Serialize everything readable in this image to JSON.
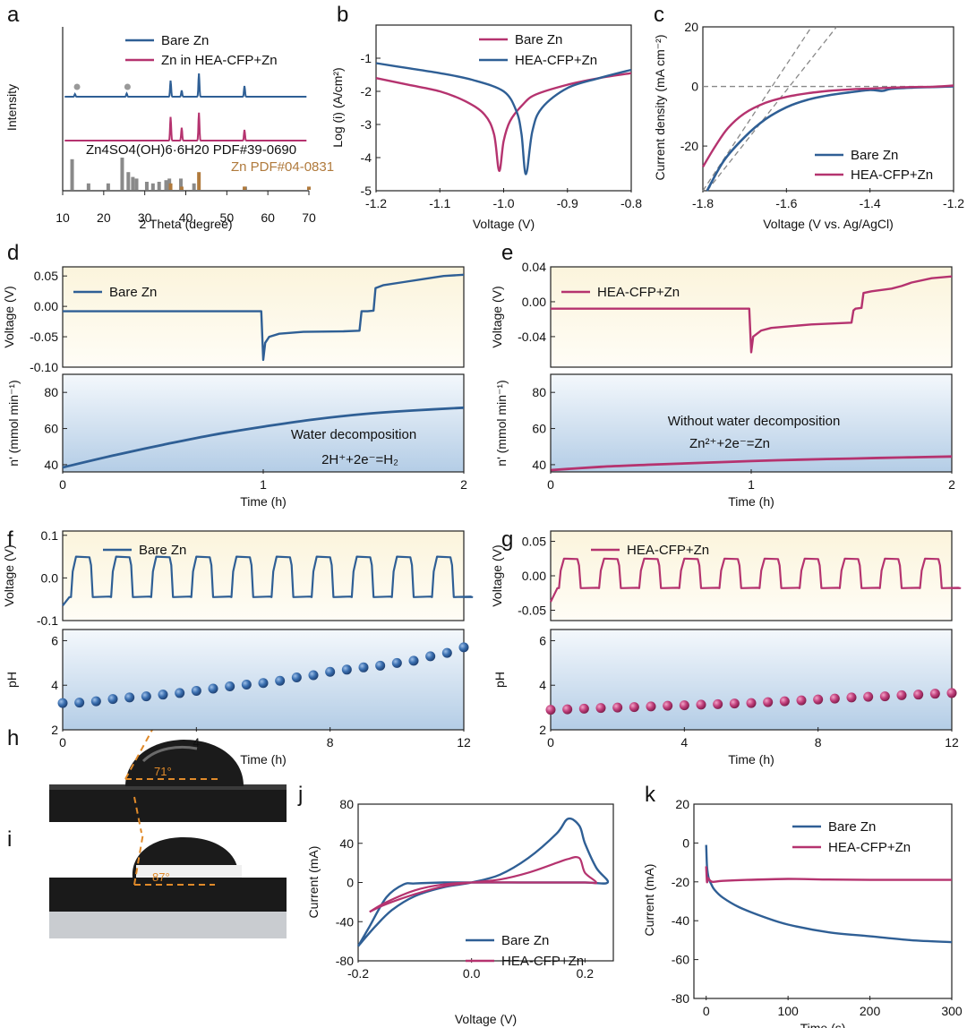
{
  "colors": {
    "blue": "#2f5f95",
    "pink": "#b5336f",
    "gray": "#8a8a8a",
    "brown": "#b07a3c",
    "grid": "#bdbdbd"
  },
  "panel_letters": [
    "a",
    "b",
    "c",
    "d",
    "e",
    "f",
    "g",
    "h",
    "i",
    "j",
    "k"
  ],
  "chart_data": [
    {
      "id": "a",
      "type": "line",
      "xlabel": "2 Theta (degree)",
      "ylabel": "Intensity",
      "xlim": [
        10,
        70
      ],
      "xticks": [
        "10",
        "20",
        "30",
        "40",
        "50",
        "60",
        "70"
      ],
      "legend": [
        "Bare Zn",
        "Zn in HEA-CFP+Zn"
      ],
      "annotation_1": "Zn4SO4(OH)6·6H20  PDF#39-0690",
      "annotation_2": "Zn PDF#04-0831",
      "series": [
        {
          "name": "Bare Zn",
          "peaks_2theta": [
            13.0,
            25.6,
            36.3,
            39.0,
            43.2,
            54.3
          ],
          "peak_heights": [
            0.15,
            0.18,
            0.9,
            0.35,
            1.3,
            0.6
          ]
        },
        {
          "name": "Zn in HEA-CFP+Zn",
          "peaks_2theta": [
            36.3,
            39.0,
            43.2,
            54.3
          ],
          "peak_heights": [
            1.1,
            0.6,
            1.3,
            0.5
          ]
        }
      ],
      "reference_zn4so4": {
        "x": [
          12.3,
          16.3,
          21.1,
          24.5,
          26.0,
          27.1,
          28.0,
          30.5,
          32.0,
          33.5,
          35.2,
          36.0,
          38.8,
          42.0,
          54.5
        ],
        "h": [
          0.95,
          0.2,
          0.2,
          1.0,
          0.55,
          0.4,
          0.35,
          0.25,
          0.2,
          0.25,
          0.3,
          0.35,
          0.35,
          0.2,
          0.1
        ]
      },
      "reference_zn": {
        "x": [
          36.3,
          39.0,
          43.2,
          54.3,
          70.0
        ],
        "h": [
          0.2,
          0.1,
          0.55,
          0.1,
          0.1
        ]
      }
    },
    {
      "id": "b",
      "type": "line",
      "xlabel": "Voltage (V)",
      "ylabel": "Log (i) (A/cm²)",
      "xlim": [
        -1.2,
        -0.8
      ],
      "ylim": [
        -5,
        0
      ],
      "xticks": [
        "-1.2",
        "-1.1",
        "-1.0",
        "-0.9",
        "-0.8"
      ],
      "yticks": [
        "-5",
        "-4",
        "-3",
        "-2",
        "-1"
      ],
      "legend": [
        "Bare Zn",
        "HEA-CFP+Zn"
      ],
      "series": [
        {
          "name": "Bare Zn",
          "x": [
            -1.2,
            -1.15,
            -1.1,
            -1.06,
            -1.03,
            -1.015,
            -1.007,
            -1.0,
            -0.99,
            -0.97,
            -0.95,
            -0.9,
            -0.85,
            -0.8
          ],
          "y": [
            -1.6,
            -1.8,
            -2.0,
            -2.3,
            -2.7,
            -3.3,
            -4.4,
            -3.5,
            -2.9,
            -2.4,
            -2.1,
            -1.8,
            -1.6,
            -1.45
          ]
        },
        {
          "name": "HEA-CFP+Zn",
          "x": [
            -1.2,
            -1.15,
            -1.1,
            -1.05,
            -1.0,
            -0.98,
            -0.972,
            -0.965,
            -0.955,
            -0.94,
            -0.9,
            -0.85,
            -0.8
          ],
          "y": [
            -1.15,
            -1.3,
            -1.45,
            -1.65,
            -2.0,
            -2.6,
            -3.3,
            -4.5,
            -3.2,
            -2.5,
            -1.9,
            -1.6,
            -1.35
          ]
        }
      ]
    },
    {
      "id": "c",
      "type": "line",
      "xlabel": "Voltage (V vs. Ag/AgCl)",
      "ylabel": "Current density (mA cm⁻²)",
      "xlim": [
        -1.8,
        -1.2
      ],
      "ylim": [
        -35,
        20
      ],
      "xticks": [
        "-1.8",
        "-1.6",
        "-1.4",
        "-1.2"
      ],
      "yticks": [
        "-20",
        "0",
        "20"
      ],
      "legend": [
        "Bare Zn",
        "HEA-CFP+Zn"
      ],
      "series": [
        {
          "name": "Bare Zn",
          "x": [
            -1.79,
            -1.75,
            -1.7,
            -1.65,
            -1.6,
            -1.55,
            -1.5,
            -1.45,
            -1.4,
            -1.37,
            -1.35,
            -1.3,
            -1.25,
            -1.2
          ],
          "y": [
            -35,
            -25,
            -17,
            -11,
            -7,
            -4.5,
            -3,
            -2,
            -1.2,
            -1.5,
            -0.8,
            -0.4,
            -0.2,
            0
          ]
        },
        {
          "name": "HEA-CFP+Zn",
          "x": [
            -1.8,
            -1.77,
            -1.74,
            -1.7,
            -1.65,
            -1.6,
            -1.55,
            -1.5,
            -1.45,
            -1.4,
            -1.35,
            -1.3,
            -1.25,
            -1.2
          ],
          "y": [
            -27,
            -20,
            -14,
            -9,
            -5.5,
            -3.5,
            -2.3,
            -1.5,
            -1,
            -0.7,
            -0.4,
            -0.2,
            -0.1,
            0.3
          ]
        }
      ]
    },
    {
      "id": "d",
      "type": "line",
      "xlabel": "Time (h)",
      "xlim": [
        0,
        2
      ],
      "xticks": [
        "0",
        "1",
        "2"
      ],
      "top": {
        "ylabel": "Voltage (V)",
        "ylim": [
          -0.1,
          0.065
        ],
        "yticks": [
          "-0.10",
          "-0.05",
          "0.00",
          "0.05"
        ],
        "legend": "Bare Zn",
        "x": [
          0,
          0.99,
          1.0,
          1.01,
          1.03,
          1.08,
          1.2,
          1.4,
          1.48,
          1.49,
          1.52,
          1.55,
          1.56,
          1.6,
          1.7,
          1.8,
          1.9,
          2.0
        ],
        "y": [
          -0.008,
          -0.008,
          -0.088,
          -0.06,
          -0.05,
          -0.045,
          -0.042,
          -0.041,
          -0.04,
          -0.008,
          -0.008,
          -0.007,
          0.03,
          0.035,
          0.04,
          0.045,
          0.05,
          0.052
        ]
      },
      "bottom": {
        "ylabel": "n' (mmol min⁻¹)",
        "ylim": [
          36,
          90
        ],
        "yticks": [
          "40",
          "60",
          "80"
        ],
        "annotation_1": "Water decomposition",
        "annotation_2": "2H⁺+2e⁻=H₂",
        "x": [
          0,
          0.25,
          0.5,
          0.75,
          1.0,
          1.25,
          1.5,
          1.75,
          2.0
        ],
        "y": [
          38.5,
          45,
          51,
          56.5,
          61,
          65,
          68,
          70,
          71.5
        ]
      }
    },
    {
      "id": "e",
      "type": "line",
      "xlabel": "Time (h)",
      "xlim": [
        0,
        2
      ],
      "xticks": [
        "0",
        "1",
        "2"
      ],
      "top": {
        "ylabel": "Voltage (V)",
        "ylim": [
          -0.075,
          0.04
        ],
        "yticks": [
          "-0.04",
          "0.00",
          "0.04"
        ],
        "legend": "HEA-CFP+Zn",
        "x": [
          0,
          0.99,
          1.0,
          1.01,
          1.05,
          1.1,
          1.2,
          1.3,
          1.4,
          1.5,
          1.51,
          1.52,
          1.55,
          1.56,
          1.6,
          1.7,
          1.75,
          1.8,
          1.9,
          2.0
        ],
        "y": [
          -0.008,
          -0.008,
          -0.058,
          -0.04,
          -0.033,
          -0.03,
          -0.028,
          -0.026,
          -0.025,
          -0.024,
          -0.01,
          -0.008,
          -0.007,
          0.01,
          0.012,
          0.015,
          0.018,
          0.022,
          0.027,
          0.029
        ]
      },
      "bottom": {
        "ylabel": "n' (mmol min⁻¹)",
        "ylim": [
          36,
          90
        ],
        "yticks": [
          "40",
          "60",
          "80"
        ],
        "annotation_1": "Without water decomposition",
        "annotation_2": "Zn²⁺+2e⁻=Zn",
        "x": [
          0,
          0.25,
          0.5,
          0.75,
          1.0,
          1.25,
          1.5,
          1.75,
          2.0
        ],
        "y": [
          37,
          38.8,
          40,
          41,
          42,
          42.8,
          43.4,
          44,
          44.5
        ]
      }
    },
    {
      "id": "f",
      "type": "line",
      "xlabel": "Time (h)",
      "xlim": [
        0,
        12
      ],
      "xticks": [
        "0",
        "4",
        "8",
        "12"
      ],
      "top": {
        "ylabel": "Voltage (V)",
        "ylim": [
          -0.1,
          0.11
        ],
        "yticks": [
          "-0.1",
          "0.0",
          "0.1"
        ],
        "legend": "Bare Zn",
        "cycles": 10,
        "high": 0.05,
        "low": -0.045
      },
      "bottom": {
        "type": "scatter",
        "ylabel": "pH",
        "ylim": [
          2,
          6.5
        ],
        "yticks": [
          "2",
          "4",
          "6"
        ],
        "x": [
          0,
          0.5,
          1,
          1.5,
          2,
          2.5,
          3,
          3.5,
          4,
          4.5,
          5,
          5.5,
          6,
          6.5,
          7,
          7.5,
          8,
          8.5,
          9,
          9.5,
          10,
          10.5,
          11,
          11.5,
          12
        ],
        "y": [
          3.2,
          3.22,
          3.28,
          3.38,
          3.45,
          3.5,
          3.58,
          3.65,
          3.75,
          3.85,
          3.95,
          4.03,
          4.1,
          4.2,
          4.35,
          4.45,
          4.6,
          4.7,
          4.8,
          4.88,
          5.0,
          5.1,
          5.3,
          5.45,
          5.7
        ]
      }
    },
    {
      "id": "g",
      "type": "line",
      "xlabel": "Time (h)",
      "xlim": [
        0,
        12
      ],
      "xticks": [
        "0",
        "4",
        "8",
        "12"
      ],
      "top": {
        "ylabel": "Voltage (V)",
        "ylim": [
          -0.065,
          0.065
        ],
        "yticks": [
          "-0.05",
          "0.00",
          "0.05"
        ],
        "legend": "HEA-CFP+Zn",
        "cycles": 10,
        "high": 0.025,
        "low": -0.018
      },
      "bottom": {
        "type": "scatter",
        "ylabel": "pH",
        "ylim": [
          2,
          6.5
        ],
        "yticks": [
          "2",
          "4",
          "6"
        ],
        "x": [
          0,
          0.5,
          1,
          1.5,
          2,
          2.5,
          3,
          3.5,
          4,
          4.5,
          5,
          5.5,
          6,
          6.5,
          7,
          7.5,
          8,
          8.5,
          9,
          9.5,
          10,
          10.5,
          11,
          11.5,
          12
        ],
        "y": [
          2.9,
          2.92,
          2.95,
          2.98,
          3.0,
          3.02,
          3.05,
          3.08,
          3.1,
          3.13,
          3.15,
          3.18,
          3.2,
          3.24,
          3.28,
          3.32,
          3.36,
          3.4,
          3.45,
          3.48,
          3.5,
          3.55,
          3.58,
          3.62,
          3.65
        ]
      }
    },
    {
      "id": "j",
      "type": "line",
      "xlabel": "Voltage (V)",
      "ylabel": "Current (mA)",
      "xlim": [
        -0.2,
        0.25
      ],
      "ylim": [
        -80,
        80
      ],
      "xticks": [
        "-0.2",
        "0.0",
        "0.2"
      ],
      "yticks": [
        "-80",
        "-40",
        "0",
        "40",
        "80"
      ],
      "legend": [
        "Bare Zn",
        "HEA-CFP+Zn"
      ],
      "series": [
        {
          "name": "Bare Zn",
          "x": [
            -0.2,
            -0.17,
            -0.14,
            -0.1,
            -0.05,
            0,
            0.05,
            0.1,
            0.15,
            0.17,
            0.19,
            0.2,
            0.22,
            0.24,
            0.2,
            0.1,
            0,
            -0.05,
            -0.1,
            -0.12,
            -0.15,
            -0.18,
            -0.2
          ],
          "y": [
            -65,
            -45,
            -28,
            -14,
            -5,
            0,
            8,
            25,
            50,
            65,
            58,
            40,
            15,
            0,
            0,
            0,
            0,
            0,
            -1,
            -2,
            -15,
            -45,
            -65
          ]
        },
        {
          "name": "HEA-CFP+Zn",
          "x": [
            -0.18,
            -0.15,
            -0.1,
            -0.05,
            0,
            0.05,
            0.1,
            0.15,
            0.17,
            0.19,
            0.2,
            0.22,
            0.2,
            0.1,
            0,
            -0.05,
            -0.1,
            -0.15,
            -0.18
          ],
          "y": [
            -30,
            -22,
            -12,
            -4,
            0,
            3,
            10,
            20,
            24,
            25,
            10,
            0,
            0,
            0,
            0,
            -2,
            -8,
            -20,
            -30
          ]
        }
      ]
    },
    {
      "id": "k",
      "type": "line",
      "xlabel": "Time (s)",
      "ylabel": "Current (mA)",
      "xlim": [
        -15,
        300
      ],
      "ylim": [
        -80,
        20
      ],
      "xticks": [
        "0",
        "100",
        "200",
        "300"
      ],
      "yticks": [
        "-80",
        "-60",
        "-40",
        "-20",
        "0",
        "20"
      ],
      "legend": [
        "Bare Zn",
        "HEA-CFP+Zn"
      ],
      "series": [
        {
          "name": "Bare Zn",
          "x": [
            0,
            1,
            3,
            6,
            10,
            20,
            40,
            70,
            100,
            150,
            200,
            250,
            300
          ],
          "y": [
            -1,
            -12,
            -18,
            -21,
            -24,
            -28,
            -33,
            -38,
            -42,
            -46,
            -48,
            -50,
            -51
          ]
        },
        {
          "name": "HEA-CFP+Zn",
          "x": [
            0,
            1,
            2,
            4,
            8,
            20,
            50,
            100,
            150,
            200,
            250,
            300
          ],
          "y": [
            -12,
            -20,
            -18,
            -19,
            -20,
            -19.5,
            -19,
            -18.5,
            -18.8,
            -19,
            -19,
            -19
          ]
        }
      ]
    }
  ],
  "photos": [
    {
      "id": "h",
      "angle_label": "71°"
    },
    {
      "id": "i",
      "angle_label": "87°"
    }
  ]
}
